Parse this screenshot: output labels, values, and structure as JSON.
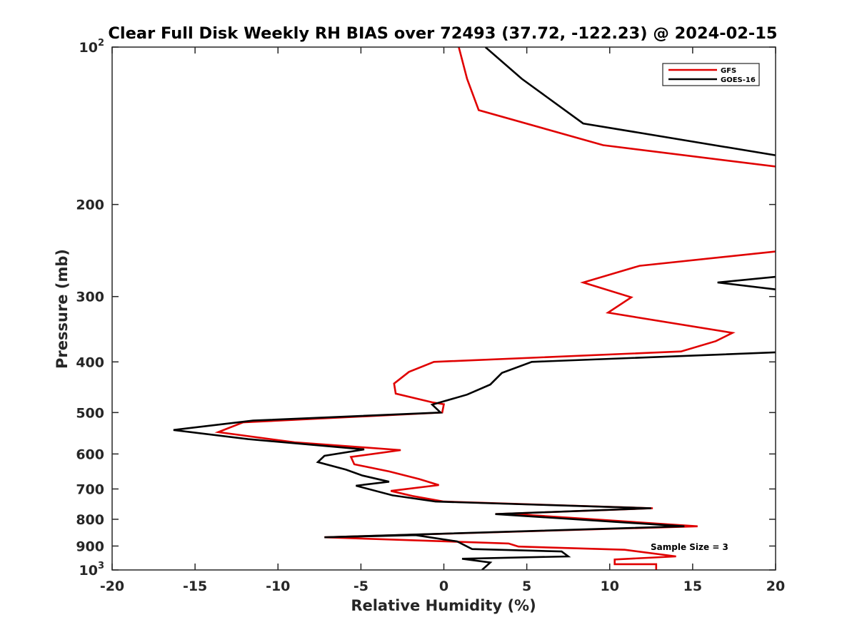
{
  "chart_data": {
    "type": "line",
    "title": "Clear Full Disk Weekly RH BIAS over 72493 (37.72, -122.23) @ 2024-02-15",
    "xlabel": "Relative Humidity (%)",
    "ylabel": "Pressure (mb)",
    "xlim": [
      -20,
      20
    ],
    "ylim": [
      100,
      1000
    ],
    "yscale": "log",
    "y_reversed": true,
    "grid": false,
    "legend_position": "top-right",
    "x_ticks": [
      {
        "value": -20,
        "label": "-20"
      },
      {
        "value": -15,
        "label": "-15"
      },
      {
        "value": -10,
        "label": "-10"
      },
      {
        "value": -5,
        "label": "-5"
      },
      {
        "value": 0,
        "label": "0"
      },
      {
        "value": 5,
        "label": "5"
      },
      {
        "value": 10,
        "label": "10"
      },
      {
        "value": 15,
        "label": "15"
      },
      {
        "value": 20,
        "label": "20"
      }
    ],
    "y_ticks": [
      {
        "value": 100,
        "label": "10",
        "sup": "2"
      },
      {
        "value": 200,
        "label": "200"
      },
      {
        "value": 300,
        "label": "300"
      },
      {
        "value": 400,
        "label": "400"
      },
      {
        "value": 500,
        "label": "500"
      },
      {
        "value": 600,
        "label": "600"
      },
      {
        "value": 700,
        "label": "700"
      },
      {
        "value": 800,
        "label": "800"
      },
      {
        "value": 900,
        "label": "900"
      },
      {
        "value": 1000,
        "label": "10",
        "sup": "3"
      }
    ],
    "annotation": "Sample Size = 3",
    "series": [
      {
        "name": "GFS",
        "color": "#e00000",
        "segments": [
          [
            [
              0.9,
              100
            ],
            [
              1.4,
              115
            ],
            [
              2.1,
              132
            ],
            [
              9.6,
              154
            ],
            [
              20.5,
              170
            ]
          ],
          [
            [
              20.5,
              245
            ],
            [
              11.8,
              262
            ],
            [
              8.4,
              282
            ],
            [
              11.3,
              301
            ],
            [
              9.9,
              322
            ],
            [
              17.4,
              352
            ],
            [
              16.4,
              365
            ],
            [
              14.3,
              382
            ],
            [
              -0.6,
              400
            ],
            [
              -2.1,
              418
            ],
            [
              -3.0,
              440
            ],
            [
              -2.9,
              460
            ],
            [
              -0.7,
              478
            ],
            [
              0.0,
              482
            ],
            [
              -0.1,
              500
            ],
            [
              -12.1,
              522
            ],
            [
              -13.6,
              545
            ],
            [
              -9.0,
              570
            ],
            [
              -2.6,
              590
            ],
            [
              -5.6,
              608
            ],
            [
              -5.4,
              628
            ],
            [
              -3.3,
              648
            ],
            [
              -1.5,
              670
            ],
            [
              -0.3,
              688
            ],
            [
              -3.2,
              706
            ],
            [
              -1.9,
              722
            ],
            [
              0.0,
              740
            ],
            [
              12.6,
              762
            ],
            [
              3.1,
              782
            ],
            [
              4.3,
              782
            ],
            [
              15.3,
              825
            ],
            [
              -7.2,
              866
            ],
            [
              3.9,
              890
            ],
            [
              4.5,
              902
            ],
            [
              10.9,
              915
            ],
            [
              14.0,
              942
            ],
            [
              10.3,
              955
            ],
            [
              10.3,
              975
            ],
            [
              12.8,
              975
            ],
            [
              12.8,
              1000
            ]
          ]
        ]
      },
      {
        "name": "GOES-16",
        "color": "#000000",
        "segments": [
          [
            [
              2.5,
              100
            ],
            [
              4.7,
              115
            ],
            [
              8.4,
              140
            ],
            [
              20.5,
              162
            ]
          ],
          [
            [
              20.5,
              274
            ],
            [
              16.5,
              282
            ],
            [
              20.5,
              292
            ]
          ],
          [
            [
              20.5,
              383
            ],
            [
              5.3,
              400
            ],
            [
              3.5,
              420
            ],
            [
              2.8,
              442
            ],
            [
              1.4,
              462
            ],
            [
              -0.7,
              483
            ],
            [
              -0.2,
              500
            ],
            [
              -11.5,
              518
            ],
            [
              -16.3,
              540
            ],
            [
              -11.8,
              562
            ],
            [
              -4.8,
              588
            ],
            [
              -7.2,
              605
            ],
            [
              -7.6,
              622
            ],
            [
              -5.9,
              643
            ],
            [
              -4.9,
              660
            ],
            [
              -3.3,
              678
            ],
            [
              -5.3,
              690
            ],
            [
              -3.1,
              720
            ],
            [
              -0.5,
              740
            ],
            [
              12.5,
              762
            ],
            [
              3.1,
              782
            ],
            [
              14.5,
              825
            ],
            [
              -7.2,
              866
            ],
            [
              -1.7,
              858
            ],
            [
              0.8,
              882
            ],
            [
              1.7,
              912
            ],
            [
              7.1,
              922
            ],
            [
              7.5,
              942
            ],
            [
              1.1,
              952
            ],
            [
              2.8,
              968
            ],
            [
              2.3,
              1000
            ]
          ]
        ]
      }
    ]
  }
}
